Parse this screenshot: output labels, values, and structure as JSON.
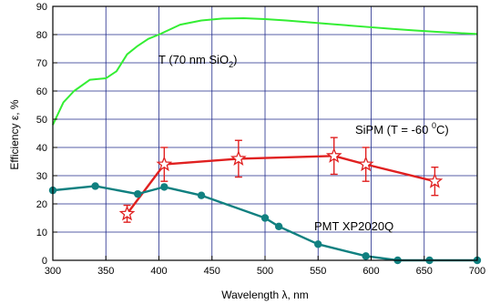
{
  "chart_data": {
    "type": "line",
    "xlabel": "Wavelength λ, nm",
    "ylabel": "Efficiency ε, %",
    "xlim": [
      300,
      700
    ],
    "ylim": [
      0,
      90
    ],
    "xticks": [
      "300",
      "350",
      "400",
      "450",
      "500",
      "550",
      "600",
      "650",
      "700"
    ],
    "yticks": [
      "0",
      "10",
      "20",
      "30",
      "40",
      "50",
      "60",
      "70",
      "80",
      "90"
    ],
    "grid": true,
    "series": [
      {
        "name": "T (70 nm SiO2)",
        "color": "#33ee33",
        "marker": "none",
        "x": [
          300,
          310,
          320,
          335,
          350,
          360,
          370,
          380,
          390,
          400,
          420,
          440,
          460,
          480,
          500,
          520,
          540,
          560,
          580,
          600,
          620,
          640,
          660,
          680,
          700
        ],
        "y": [
          48,
          56,
          60,
          64,
          64.5,
          67,
          73,
          76,
          78.5,
          80,
          83.5,
          85,
          85.7,
          85.8,
          85.5,
          85,
          84.4,
          83.8,
          83.2,
          82.6,
          82,
          81.5,
          81,
          80.6,
          80.2
        ]
      },
      {
        "name": "SiPM (T = -60 °C)",
        "color": "#e02020",
        "marker": "star",
        "x": [
          370,
          405,
          475,
          565,
          595,
          660
        ],
        "y": [
          16.5,
          34,
          36,
          37,
          34,
          28
        ],
        "yerr": [
          3,
          6,
          6.5,
          6.5,
          6,
          5
        ]
      },
      {
        "name": "PMT XP2020Q",
        "color": "#108080",
        "marker": "circle",
        "x": [
          300,
          340,
          380,
          405,
          440,
          500,
          513,
          550,
          595,
          625,
          655,
          700
        ],
        "y": [
          24.8,
          26.3,
          23.5,
          26,
          23,
          15,
          12,
          5.7,
          1.5,
          0,
          0,
          0
        ]
      }
    ],
    "annotations": [
      {
        "label": "T (70 nm SiO",
        "sub": "2",
        "suffix": ")"
      },
      {
        "label": "SiPM (T = -60 ",
        "sup": "0",
        "suffix": "C)"
      },
      {
        "label": "PMT XP2020Q"
      }
    ]
  }
}
